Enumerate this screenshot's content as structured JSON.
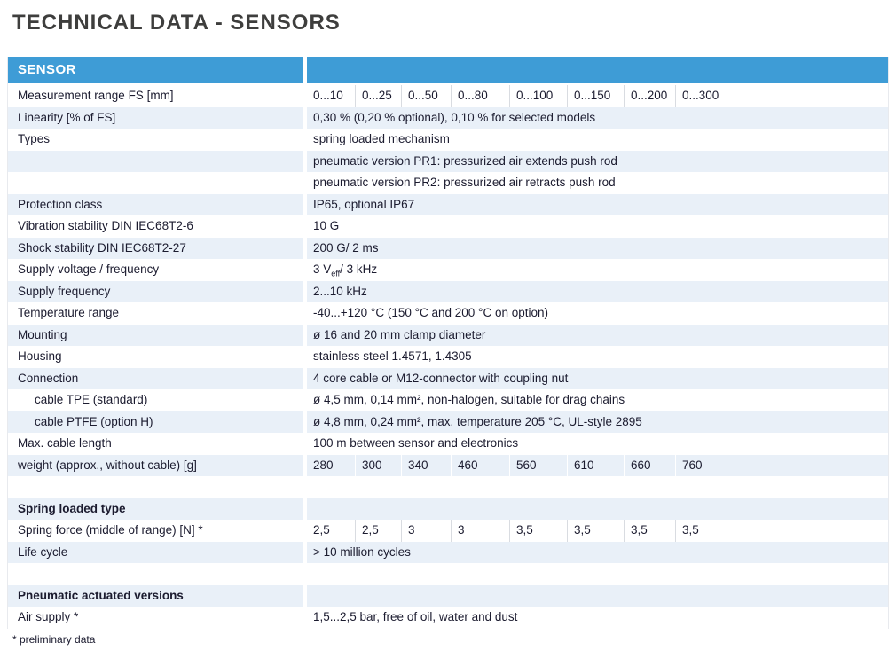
{
  "page": {
    "title": "TECHNICAL DATA - SENSORS",
    "footnote": "* preliminary data"
  },
  "colors": {
    "header_bg": "#3E9CD6",
    "header_text": "#FFFFFF",
    "alt_row_bg": "#E9F0F8",
    "text": "#1B1B2F",
    "title_text": "#3E3E3D"
  },
  "table": {
    "header": "SENSOR",
    "rows": [
      {
        "label": "Measurement range FS [mm]",
        "values": [
          "0...10",
          "0...25",
          "0...50",
          "0...80",
          "0...100",
          "0...150",
          "0...200",
          "0...300"
        ]
      },
      {
        "label": "Linearity [% of FS]",
        "value": "0,30 % (0,20 % optional), 0,10 % for selected models"
      },
      {
        "label": "Types",
        "value": "spring loaded mechanism"
      },
      {
        "label": "",
        "value": "pneumatic version PR1: pressurized air extends push rod"
      },
      {
        "label": "",
        "value": "pneumatic version PR2: pressurized air retracts push rod"
      },
      {
        "label": "Protection class",
        "value": "IP65, optional IP67"
      },
      {
        "label": "Vibration stability DIN IEC68T2-6",
        "value": "10 G"
      },
      {
        "label": "Shock stability DIN IEC68T2-27",
        "value": "200 G/ 2 ms"
      },
      {
        "label": "Supply voltage / frequency",
        "value_prefix": "3 V",
        "value_sub": "eff",
        "value_suffix": "/ 3 kHz"
      },
      {
        "label": "Supply frequency",
        "value": "2...10 kHz"
      },
      {
        "label": "Temperature range",
        "value": "-40...+120 °C (150 °C and 200 °C on option)"
      },
      {
        "label": "Mounting",
        "value": "ø 16 and 20 mm clamp diameter"
      },
      {
        "label": "Housing",
        "value": "stainless steel 1.4571, 1.4305"
      },
      {
        "label": "Connection",
        "value": "4 core cable or M12-connector with coupling nut"
      },
      {
        "label": "cable TPE (standard)",
        "value": "ø 4,5 mm, 0,14 mm², non-halogen, suitable for drag chains"
      },
      {
        "label": "cable PTFE (option H)",
        "value": "ø 4,8 mm, 0,24 mm², max. temperature 205 °C, UL-style 2895"
      },
      {
        "label": "Max. cable length",
        "value": "100 m between sensor and electronics"
      },
      {
        "label": "weight (approx., without cable) [g]",
        "values": [
          "280",
          "300",
          "340",
          "460",
          "560",
          "610",
          "660",
          "760"
        ]
      },
      {
        "label": "",
        "value": ""
      },
      {
        "label": "Spring loaded type",
        "value": ""
      },
      {
        "label": "Spring force (middle of range) [N] *",
        "values": [
          "2,5",
          "2,5",
          "3",
          "3",
          "3,5",
          "3,5",
          "3,5",
          "3,5"
        ]
      },
      {
        "label": "Life cycle",
        "value": "> 10 million cycles"
      },
      {
        "label": "",
        "value": ""
      },
      {
        "label": "Pneumatic actuated versions",
        "value": ""
      },
      {
        "label": "Air supply *",
        "value": "1,5...2,5 bar, free of oil, water and dust"
      }
    ]
  }
}
